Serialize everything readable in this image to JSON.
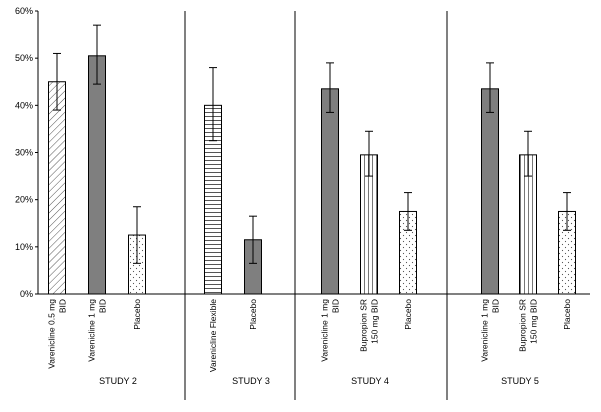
{
  "chart_data": {
    "type": "bar",
    "title": "",
    "xlabel": "",
    "ylabel": "",
    "ylim": [
      0,
      60
    ],
    "y_ticks": [
      "0%",
      "10%",
      "20%",
      "30%",
      "40%",
      "50%",
      "60%"
    ],
    "grid": false,
    "legend": "none",
    "groups": [
      {
        "name": "STUDY 2",
        "bars": [
          {
            "label": "Varenicline 0.5 mg BID",
            "label_lines": [
              "Varenicline 0.5 mg",
              "BID"
            ],
            "value": 45,
            "error_low": 39,
            "error_high": 51,
            "pattern": "diagonal"
          },
          {
            "label": "Varenicline 1 mg BID",
            "label_lines": [
              "Varenicline 1 mg",
              "BID"
            ],
            "value": 50.5,
            "error_low": 44.5,
            "error_high": 57,
            "pattern": "solid"
          },
          {
            "label": "Placebo",
            "label_lines": [
              "Placebo"
            ],
            "value": 12.5,
            "error_low": 6.5,
            "error_high": 18.5,
            "pattern": "dots"
          }
        ]
      },
      {
        "name": "STUDY 3",
        "bars": [
          {
            "label": "Varenicline Flexible",
            "label_lines": [
              "Varenicline Flexible"
            ],
            "value": 40,
            "error_low": 32.5,
            "error_high": 48,
            "pattern": "horizontal"
          },
          {
            "label": "Placebo",
            "label_lines": [
              "Placebo"
            ],
            "value": 11.5,
            "error_low": 6.5,
            "error_high": 16.5,
            "pattern": "solid"
          }
        ]
      },
      {
        "name": "STUDY 4",
        "bars": [
          {
            "label": "Varenicline 1 mg BID",
            "label_lines": [
              "Varenicline 1 mg",
              "BID"
            ],
            "value": 43.5,
            "error_low": 38.5,
            "error_high": 49,
            "pattern": "solid"
          },
          {
            "label": "Bupropion SR 150 mg BID",
            "label_lines": [
              "Bupropion SR",
              "150 mg BID"
            ],
            "value": 29.5,
            "error_low": 25,
            "error_high": 34.5,
            "pattern": "vertical"
          },
          {
            "label": "Placebo",
            "label_lines": [
              "Placebo"
            ],
            "value": 17.5,
            "error_low": 13.5,
            "error_high": 21.5,
            "pattern": "dots"
          }
        ]
      },
      {
        "name": "STUDY 5",
        "bars": [
          {
            "label": "Varenicline 1 mg BID",
            "label_lines": [
              "Varenicline 1 mg",
              "BID"
            ],
            "value": 43.5,
            "error_low": 38.5,
            "error_high": 49,
            "pattern": "solid"
          },
          {
            "label": "Bupropion SR 150 mg BID",
            "label_lines": [
              "Bupropion SR",
              "150 mg BID"
            ],
            "value": 29.5,
            "error_low": 25,
            "error_high": 34.5,
            "pattern": "vertical"
          },
          {
            "label": "Placebo",
            "label_lines": [
              "Placebo"
            ],
            "value": 17.5,
            "error_low": 13.5,
            "error_high": 21.5,
            "pattern": "dots"
          }
        ]
      }
    ]
  },
  "colors": {
    "solid_fill": "#7f7f7f",
    "stroke": "#000000",
    "hatch": "#555555"
  }
}
